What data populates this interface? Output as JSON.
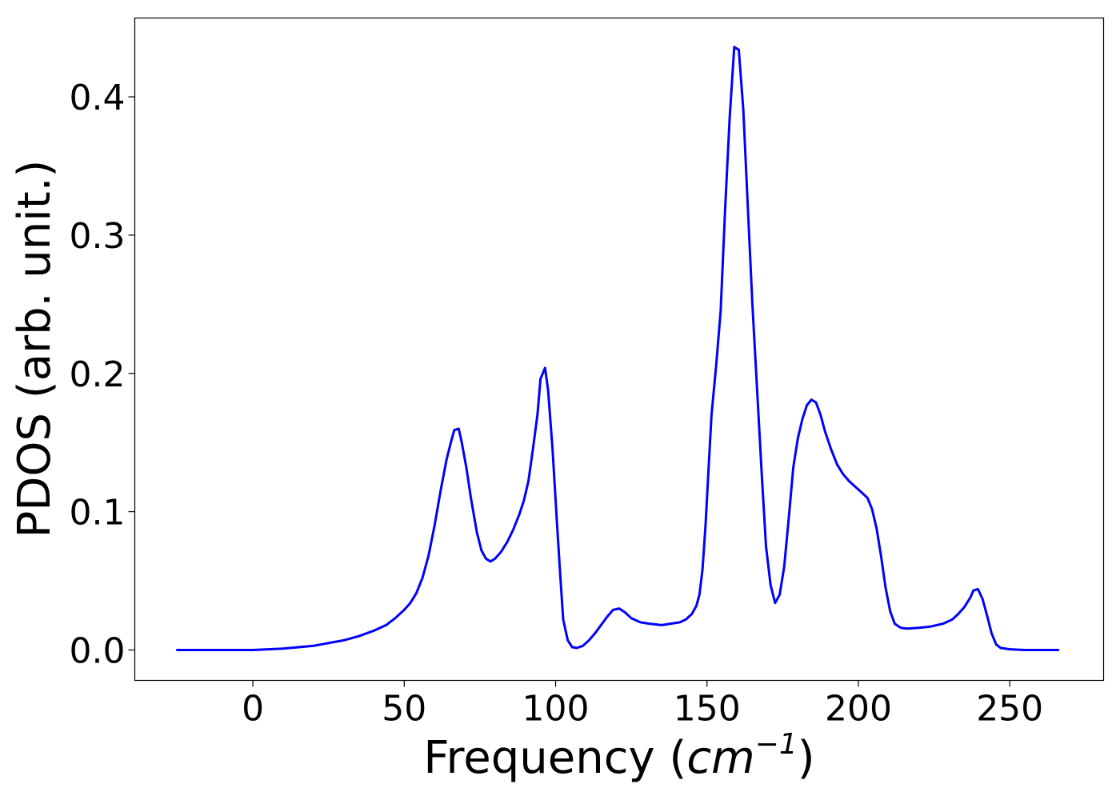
{
  "chart_data": {
    "type": "line",
    "xlabel": "Frequency (",
    "xlabel_unit_base": "cm",
    "xlabel_unit_exp": "−1",
    "xlabel_close": ")",
    "ylabel": "PDOS (arb. unit.)",
    "xlim": [
      -39,
      281
    ],
    "ylim": [
      -0.022,
      0.457
    ],
    "xticks": [
      0,
      50,
      100,
      150,
      200,
      250
    ],
    "xtick_labels": [
      "0",
      "50",
      "100",
      "150",
      "200",
      "250"
    ],
    "yticks": [
      0.0,
      0.1,
      0.2,
      0.3,
      0.4
    ],
    "ytick_labels": [
      "0.0",
      "0.1",
      "0.2",
      "0.3",
      "0.4"
    ],
    "grid": false,
    "series": [
      {
        "color": "#0000ff",
        "points": [
          [
            -25,
            0.0
          ],
          [
            0,
            0.0
          ],
          [
            5,
            0.0005
          ],
          [
            10,
            0.001
          ],
          [
            15,
            0.002
          ],
          [
            20,
            0.003
          ],
          [
            25,
            0.005
          ],
          [
            30,
            0.007
          ],
          [
            35,
            0.01
          ],
          [
            40,
            0.014
          ],
          [
            44,
            0.018
          ],
          [
            47,
            0.023
          ],
          [
            50,
            0.029
          ],
          [
            52,
            0.034
          ],
          [
            54,
            0.041
          ],
          [
            56,
            0.052
          ],
          [
            58,
            0.068
          ],
          [
            60,
            0.09
          ],
          [
            62,
            0.115
          ],
          [
            64,
            0.138
          ],
          [
            65.5,
            0.151
          ],
          [
            66.5,
            0.159
          ],
          [
            68,
            0.16
          ],
          [
            69,
            0.15
          ],
          [
            70.5,
            0.132
          ],
          [
            72,
            0.11
          ],
          [
            74,
            0.085
          ],
          [
            75.5,
            0.072
          ],
          [
            77,
            0.066
          ],
          [
            78.5,
            0.064
          ],
          [
            80,
            0.066
          ],
          [
            82,
            0.071
          ],
          [
            84,
            0.078
          ],
          [
            86,
            0.087
          ],
          [
            88,
            0.098
          ],
          [
            89.5,
            0.108
          ],
          [
            91,
            0.122
          ],
          [
            92.5,
            0.145
          ],
          [
            94,
            0.17
          ],
          [
            95,
            0.196
          ],
          [
            96.5,
            0.204
          ],
          [
            97.5,
            0.188
          ],
          [
            99,
            0.145
          ],
          [
            100.5,
            0.09
          ],
          [
            101.5,
            0.055
          ],
          [
            102.5,
            0.022
          ],
          [
            104,
            0.007
          ],
          [
            105.5,
            0.002
          ],
          [
            107,
            0.0015
          ],
          [
            109,
            0.003
          ],
          [
            111,
            0.007
          ],
          [
            113,
            0.012
          ],
          [
            115,
            0.018
          ],
          [
            117,
            0.024
          ],
          [
            119,
            0.029
          ],
          [
            121,
            0.03
          ],
          [
            123,
            0.027
          ],
          [
            125,
            0.023
          ],
          [
            128,
            0.02
          ],
          [
            131,
            0.019
          ],
          [
            135,
            0.018
          ],
          [
            138,
            0.019
          ],
          [
            141,
            0.02
          ],
          [
            143,
            0.022
          ],
          [
            145,
            0.026
          ],
          [
            146.5,
            0.032
          ],
          [
            147.5,
            0.04
          ],
          [
            148.5,
            0.058
          ],
          [
            149.5,
            0.09
          ],
          [
            150.5,
            0.13
          ],
          [
            151.5,
            0.17
          ],
          [
            153,
            0.205
          ],
          [
            154.5,
            0.245
          ],
          [
            156,
            0.32
          ],
          [
            157.5,
            0.385
          ],
          [
            159,
            0.436
          ],
          [
            160.5,
            0.434
          ],
          [
            162,
            0.39
          ],
          [
            163.5,
            0.32
          ],
          [
            165,
            0.25
          ],
          [
            166.5,
            0.19
          ],
          [
            168,
            0.13
          ],
          [
            169.5,
            0.075
          ],
          [
            171,
            0.047
          ],
          [
            172.5,
            0.034
          ],
          [
            174,
            0.04
          ],
          [
            175.5,
            0.06
          ],
          [
            177,
            0.095
          ],
          [
            178.5,
            0.132
          ],
          [
            180,
            0.153
          ],
          [
            181.5,
            0.167
          ],
          [
            183,
            0.177
          ],
          [
            184.5,
            0.181
          ],
          [
            186,
            0.179
          ],
          [
            187.5,
            0.17
          ],
          [
            189,
            0.158
          ],
          [
            191,
            0.145
          ],
          [
            193,
            0.134
          ],
          [
            195,
            0.127
          ],
          [
            197,
            0.122
          ],
          [
            199,
            0.118
          ],
          [
            201,
            0.114
          ],
          [
            203,
            0.11
          ],
          [
            204.5,
            0.102
          ],
          [
            206,
            0.088
          ],
          [
            207.5,
            0.068
          ],
          [
            209,
            0.045
          ],
          [
            210.5,
            0.028
          ],
          [
            212,
            0.019
          ],
          [
            214,
            0.016
          ],
          [
            216,
            0.0155
          ],
          [
            220,
            0.016
          ],
          [
            224,
            0.017
          ],
          [
            228,
            0.019
          ],
          [
            231,
            0.022
          ],
          [
            233,
            0.026
          ],
          [
            235,
            0.031
          ],
          [
            237,
            0.038
          ],
          [
            238,
            0.043
          ],
          [
            239.5,
            0.044
          ],
          [
            241,
            0.037
          ],
          [
            242.5,
            0.025
          ],
          [
            244,
            0.012
          ],
          [
            245.5,
            0.004
          ],
          [
            247,
            0.0015
          ],
          [
            250,
            0.0005
          ],
          [
            255,
            0.0
          ],
          [
            266,
            0.0
          ]
        ]
      }
    ]
  }
}
